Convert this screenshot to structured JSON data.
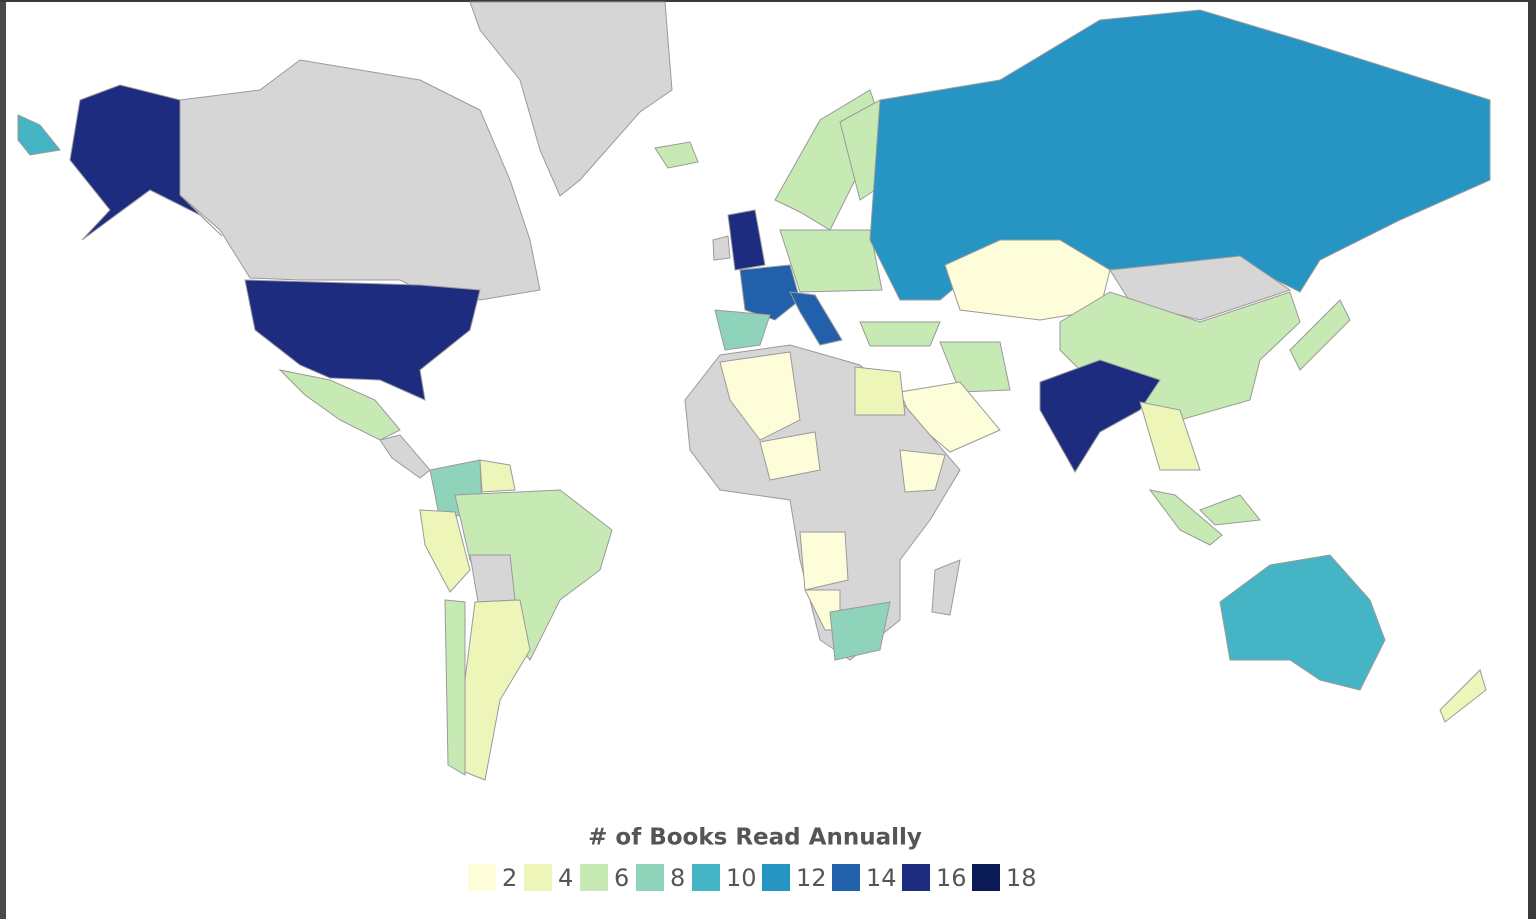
{
  "legend": {
    "title": "# of Books Read Annually",
    "items": [
      {
        "value": 2,
        "color": "#fdfdd9"
      },
      {
        "value": 4,
        "color": "#eef5b9"
      },
      {
        "value": 6,
        "color": "#c7e9b4"
      },
      {
        "value": 8,
        "color": "#8fd3bb"
      },
      {
        "value": 10,
        "color": "#45b4c4"
      },
      {
        "value": 12,
        "color": "#2695c4"
      },
      {
        "value": 14,
        "color": "#2260ab"
      },
      {
        "value": 16,
        "color": "#1e2c7f"
      },
      {
        "value": 18,
        "color": "#0a1a55"
      }
    ]
  }
}
